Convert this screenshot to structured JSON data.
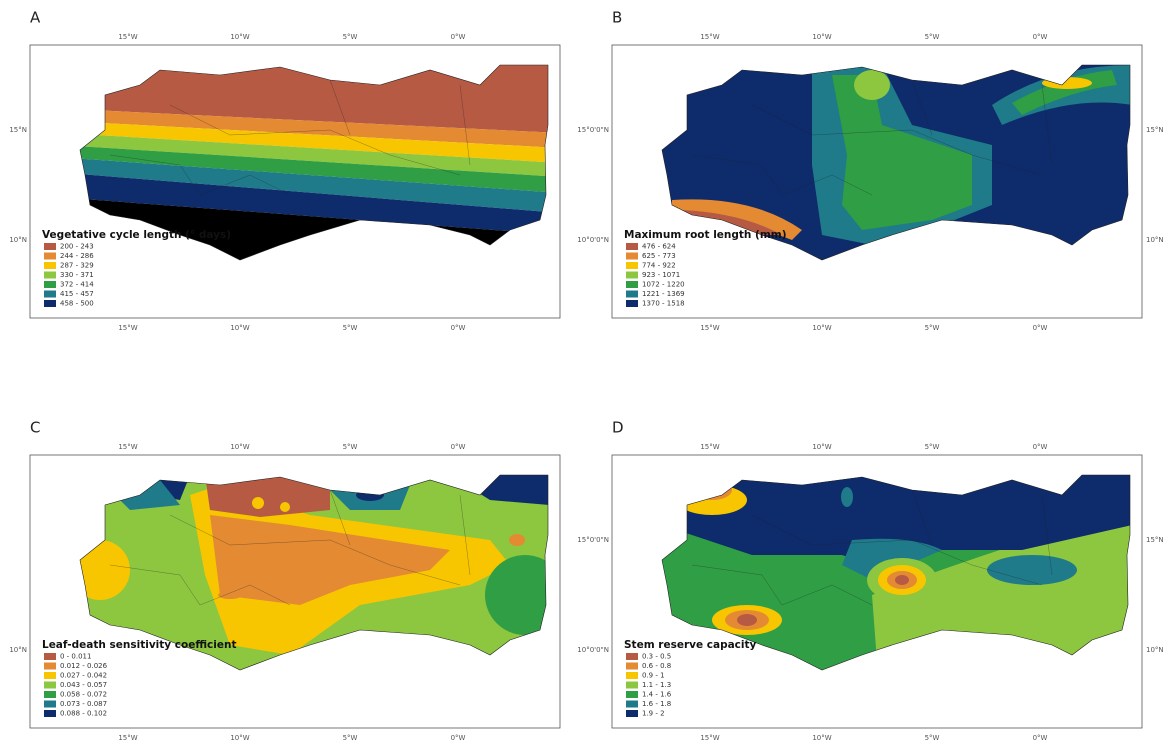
{
  "panels": [
    {
      "label": "A",
      "top_ticks": [
        "15°W",
        "10°W",
        "5°W",
        "0°W"
      ],
      "bottom_ticks": [
        "15°W",
        "10°W",
        "5°W",
        "0°W"
      ],
      "left_ticks": [
        "15°N",
        "10°N"
      ],
      "right_ticks": [],
      "legend": {
        "title": "Vegetative cycle length (° days)",
        "items": [
          {
            "label": "200 - 243",
            "color": "#b65a43"
          },
          {
            "label": "244 - 286",
            "color": "#e38a32"
          },
          {
            "label": "287 - 329",
            "color": "#f7c600"
          },
          {
            "label": "330 - 371",
            "color": "#8dc63f"
          },
          {
            "label": "372 - 414",
            "color": "#2f9e44"
          },
          {
            "label": "415 - 457",
            "color": "#1f7a8a"
          },
          {
            "label": "458 - 500",
            "color": "#0e2b6b"
          }
        ]
      }
    },
    {
      "label": "B",
      "top_ticks": [
        "15°W",
        "10°W",
        "5°W",
        "0°W"
      ],
      "bottom_ticks": [
        "15°W",
        "10°W",
        "5°W",
        "0°W"
      ],
      "left_ticks": [
        "15°0'0\"N",
        "10°0'0\"N"
      ],
      "right_ticks": [
        "15°N",
        "10°N"
      ],
      "legend": {
        "title": "Maximum root length (mm)",
        "items": [
          {
            "label": "476 - 624",
            "color": "#b65a43"
          },
          {
            "label": "625 - 773",
            "color": "#e38a32"
          },
          {
            "label": "774 - 922",
            "color": "#f7c600"
          },
          {
            "label": "923 - 1071",
            "color": "#8dc63f"
          },
          {
            "label": "1072 - 1220",
            "color": "#2f9e44"
          },
          {
            "label": "1221 - 1369",
            "color": "#1f7a8a"
          },
          {
            "label": "1370 - 1518",
            "color": "#0e2b6b"
          }
        ]
      }
    },
    {
      "label": "C",
      "top_ticks": [
        "15°W",
        "10°W",
        "5°W",
        "0°W"
      ],
      "bottom_ticks": [
        "15°W",
        "10°W",
        "5°W",
        "0°W"
      ],
      "left_ticks": [
        "10°N"
      ],
      "right_ticks": [],
      "legend": {
        "title": "Leaf-death sensitivity coefficient",
        "items": [
          {
            "label": "0 - 0.011",
            "color": "#b65a43"
          },
          {
            "label": "0.012 - 0.026",
            "color": "#e38a32"
          },
          {
            "label": "0.027 - 0.042",
            "color": "#f7c600"
          },
          {
            "label": "0.043 - 0.057",
            "color": "#8dc63f"
          },
          {
            "label": "0.058 - 0.072",
            "color": "#2f9e44"
          },
          {
            "label": "0.073 - 0.087",
            "color": "#1f7a8a"
          },
          {
            "label": "0.088 - 0.102",
            "color": "#0e2b6b"
          }
        ]
      }
    },
    {
      "label": "D",
      "top_ticks": [
        "15°W",
        "10°W",
        "5°W",
        "0°W"
      ],
      "bottom_ticks": [
        "15°W",
        "10°W",
        "5°W",
        "0°W"
      ],
      "left_ticks": [
        "15°0'0\"N",
        "10°0'0\"N"
      ],
      "right_ticks": [
        "15°N",
        "10°N"
      ],
      "legend": {
        "title": "Stem reserve capacity",
        "items": [
          {
            "label": "0.3 - 0.5",
            "color": "#b65a43"
          },
          {
            "label": "0.6 - 0.8",
            "color": "#e38a32"
          },
          {
            "label": "0.9 - 1",
            "color": "#f7c600"
          },
          {
            "label": "1.1 - 1.3",
            "color": "#8dc63f"
          },
          {
            "label": "1.4 - 1.6",
            "color": "#2f9e44"
          },
          {
            "label": "1.6 - 1.8",
            "color": "#1f7a8a"
          },
          {
            "label": "1.9 - 2",
            "color": "#0e2b6b"
          }
        ]
      }
    }
  ]
}
